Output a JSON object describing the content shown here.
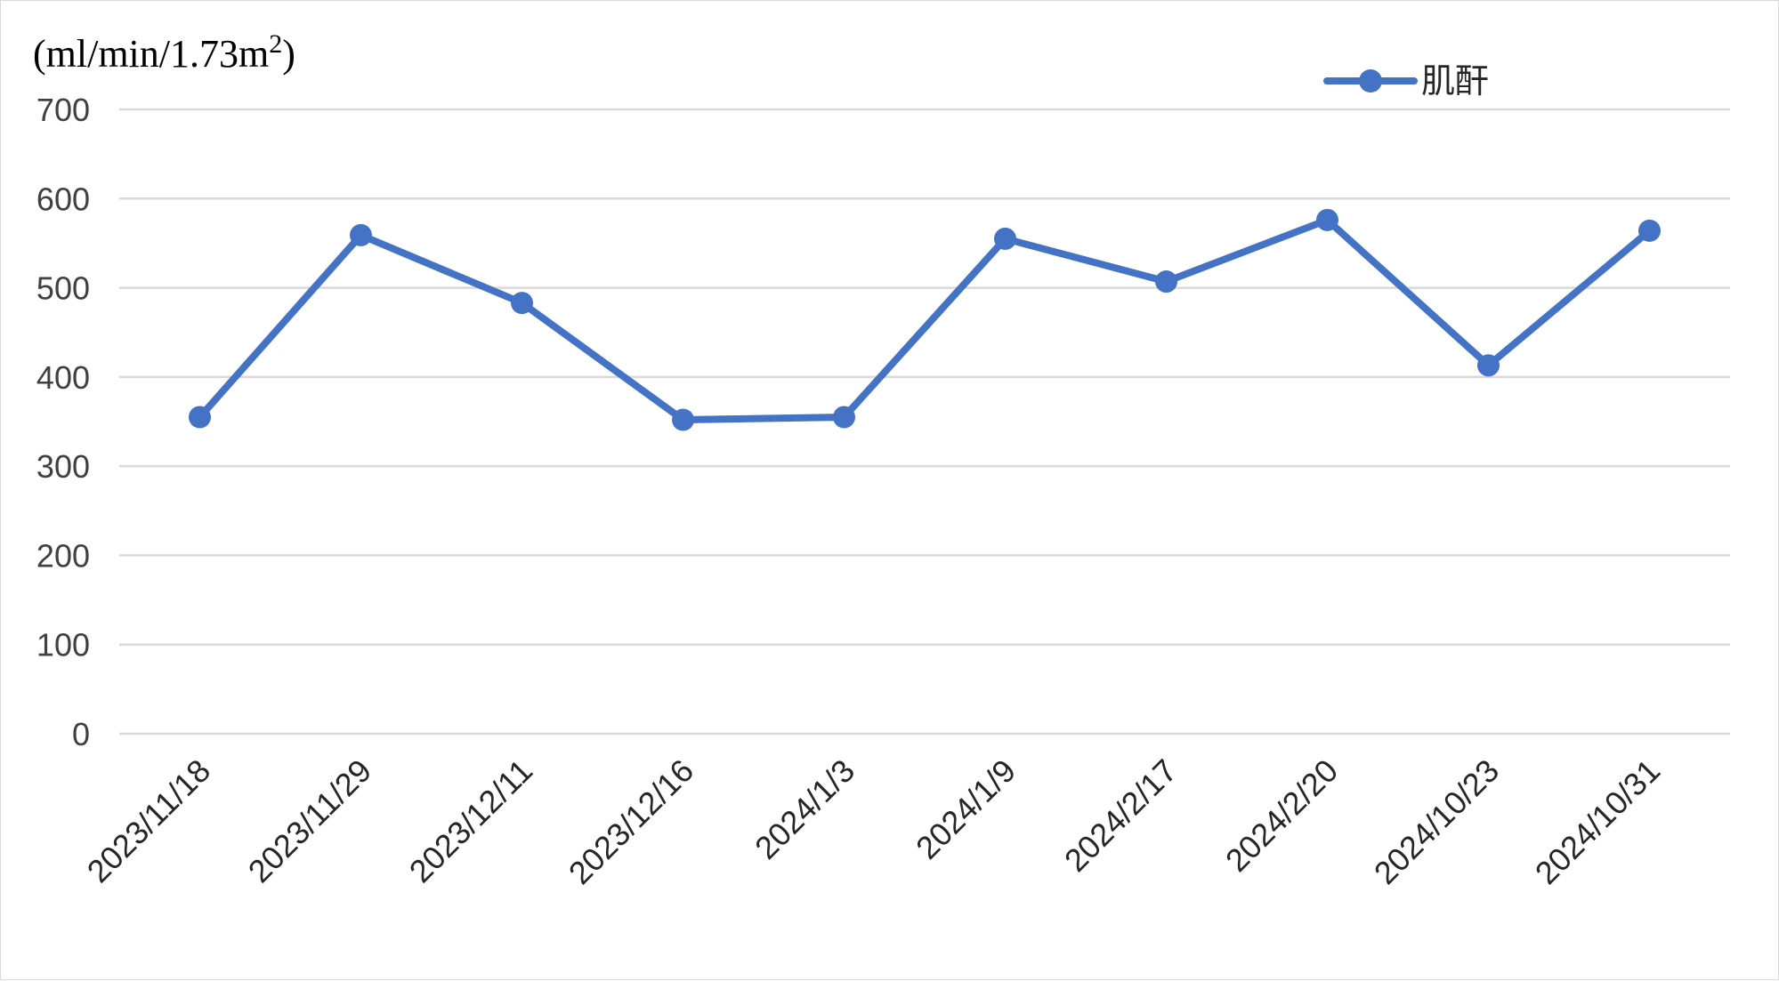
{
  "chart_data": {
    "type": "line",
    "title": "",
    "ylabel_unit_prefix": "(ml/min/1.73m",
    "ylabel_unit_sup": "2",
    "ylabel_unit_suffix": ")",
    "xlabel": "",
    "ylim": [
      0,
      700
    ],
    "y_ticks": [
      0,
      100,
      200,
      300,
      400,
      500,
      600,
      700
    ],
    "grid": true,
    "legend_position": "top-right",
    "categories": [
      "2023/11/18",
      "2023/11/29",
      "2023/12/11",
      "2023/12/16",
      "2024/1/3",
      "2024/1/9",
      "2024/2/17",
      "2024/2/20",
      "2024/10/23",
      "2024/10/31"
    ],
    "series": [
      {
        "name": "肌酐",
        "color": "#4472c4",
        "values": [
          355,
          559,
          483,
          352,
          355,
          555,
          507,
          576,
          413,
          564
        ]
      }
    ]
  }
}
